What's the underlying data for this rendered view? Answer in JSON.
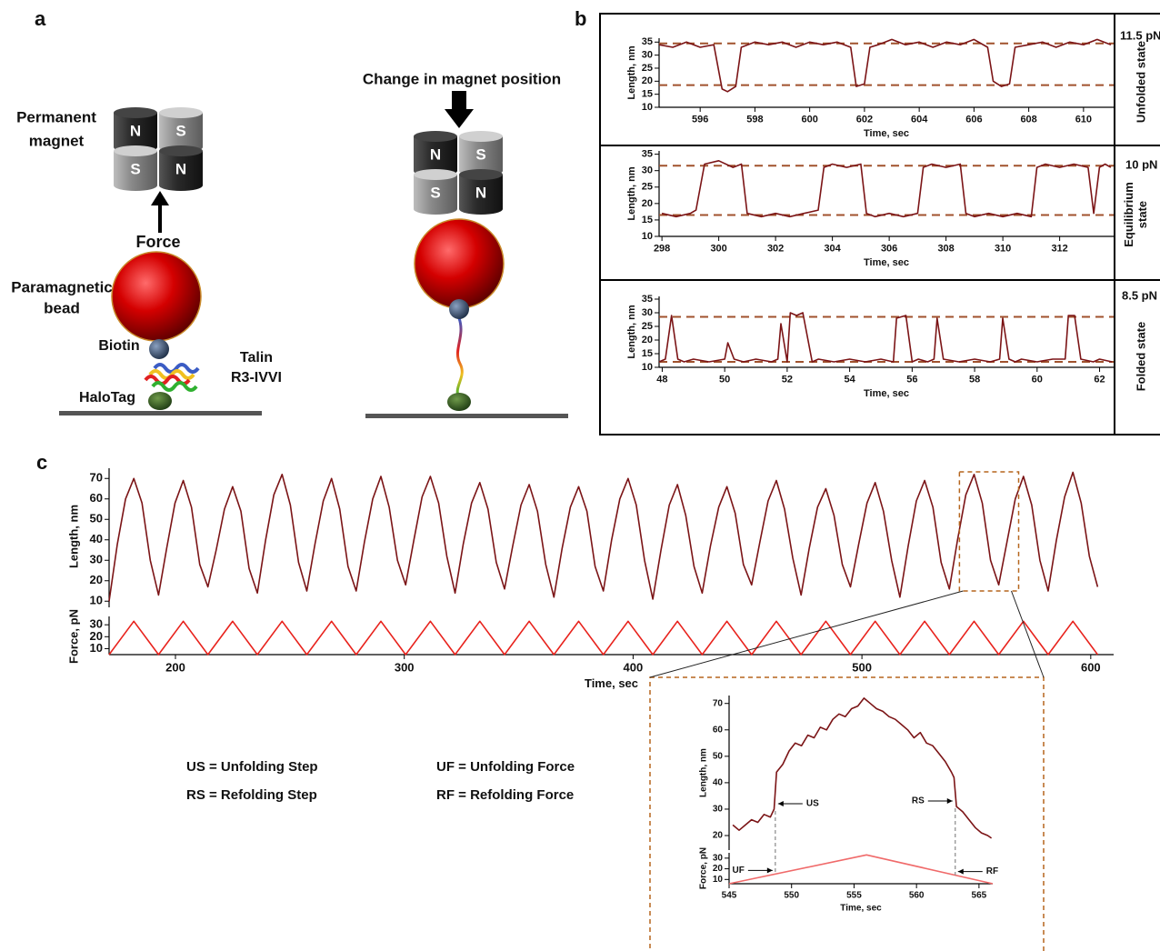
{
  "panel_labels": [
    "a",
    "b",
    "c"
  ],
  "diagram": {
    "poles": [
      "N",
      "S",
      "S",
      "N",
      "N",
      "S",
      "S",
      "N"
    ],
    "permanent_magnet": [
      "Permanent",
      "magnet"
    ],
    "force": "Force",
    "paramagnetic_bead": [
      "Paramagnetic",
      "bead"
    ],
    "biotin": "Biotin",
    "talin": [
      "Talin",
      "R3-IVVI"
    ],
    "halotag": "HaloTag",
    "change_magnet": "Change in magnet position"
  },
  "legend_notes": [
    "US = Unfolding Step",
    "RS = Refolding Step",
    "UF = Unfolding Force",
    "RF = Refolding Force"
  ],
  "chart_data": [
    {
      "type": "line",
      "xlabel": "Time, sec",
      "ylabel": "Length, nm",
      "x": [
        594.5,
        595,
        595.5,
        596,
        596.5,
        596.8,
        597,
        597.3,
        597.5,
        598,
        598.5,
        599,
        599.5,
        600,
        600.5,
        601,
        601.5,
        601.7,
        602,
        602.2,
        602.5,
        603,
        603.5,
        604,
        604.5,
        605,
        605.5,
        606,
        606.5,
        606.7,
        607,
        607.3,
        607.5,
        608,
        608.5,
        609,
        609.5,
        610,
        610.5,
        611
      ],
      "series": [
        {
          "color": "#7b1416",
          "values": [
            34,
            33,
            35,
            33,
            34,
            17,
            16,
            18,
            33,
            35,
            34,
            35,
            33,
            35,
            34,
            35,
            33,
            18,
            19,
            33,
            34,
            36,
            34,
            35,
            33,
            35,
            34,
            36,
            33,
            20,
            18,
            19,
            33,
            34,
            35,
            33,
            35,
            34,
            36,
            34
          ]
        }
      ],
      "xlim": [
        594.5,
        611.1
      ],
      "ylim": [
        10,
        36.5
      ],
      "xticks": [
        596,
        598,
        600,
        602,
        604,
        606,
        608,
        610
      ],
      "yticks": [
        10,
        15,
        20,
        25,
        30,
        35
      ],
      "ref_lines": [
        34.5,
        18.5
      ],
      "ref_color": "#a0522d",
      "side_label": "11.5 pN",
      "state_label": [
        "Unfolded state"
      ]
    },
    {
      "type": "line",
      "xlabel": "Time, sec",
      "ylabel": "Length, nm",
      "x": [
        298,
        298.5,
        299,
        299.2,
        299.5,
        300,
        300.5,
        300.8,
        301,
        301.5,
        302,
        302.5,
        303,
        303.5,
        303.7,
        304,
        304.5,
        305,
        305.2,
        305.5,
        306,
        306.5,
        307,
        307.2,
        307.5,
        308,
        308.5,
        308.7,
        309,
        309.5,
        310,
        310.5,
        311,
        311.2,
        311.5,
        312,
        312.5,
        313,
        313.2,
        313.4,
        313.6,
        313.8
      ],
      "series": [
        {
          "color": "#7b1416",
          "values": [
            17,
            16,
            17,
            18,
            32,
            33,
            31,
            32,
            17,
            16,
            17,
            16,
            17,
            18,
            31,
            32,
            31,
            32,
            17,
            16,
            17,
            16,
            17,
            31,
            32,
            31,
            32,
            17,
            16,
            17,
            16,
            17,
            16,
            31,
            32,
            31,
            32,
            31,
            17,
            31,
            32,
            31
          ]
        }
      ],
      "xlim": [
        297.9,
        313.9
      ],
      "ylim": [
        10,
        36
      ],
      "xticks": [
        298,
        300,
        302,
        304,
        306,
        308,
        310,
        312
      ],
      "yticks": [
        10,
        15,
        20,
        25,
        30,
        35
      ],
      "ref_lines": [
        31.5,
        16.5
      ],
      "ref_color": "#a0522d",
      "side_label": "10 pN",
      "state_label": [
        "Equilibrium",
        "state"
      ]
    },
    {
      "type": "line",
      "xlabel": "Time, sec",
      "ylabel": "Length, nm",
      "x": [
        47.9,
        48.1,
        48.3,
        48.5,
        48.7,
        49,
        49.5,
        50,
        50.1,
        50.3,
        50.6,
        51,
        51.5,
        51.7,
        51.8,
        52,
        52.1,
        52.3,
        52.5,
        52.8,
        53,
        53.5,
        54,
        54.5,
        55,
        55.4,
        55.5,
        55.8,
        56,
        56.2,
        56.5,
        56.7,
        56.8,
        57,
        57.5,
        58,
        58.5,
        58.8,
        58.9,
        59.1,
        59.3,
        59.5,
        60,
        60.5,
        60.9,
        61,
        61.2,
        61.4,
        61.8,
        62,
        62.4
      ],
      "series": [
        {
          "color": "#7b1416",
          "values": [
            12,
            13,
            29,
            13,
            12,
            13,
            12,
            13,
            19,
            13,
            12,
            13,
            12,
            13,
            26,
            12,
            30,
            29,
            30,
            12,
            13,
            12,
            13,
            12,
            13,
            12,
            28,
            29,
            12,
            13,
            12,
            13,
            28,
            13,
            12,
            13,
            12,
            13,
            28,
            13,
            12,
            13,
            12,
            13,
            13,
            29,
            29,
            13,
            12,
            13,
            12
          ]
        }
      ],
      "xlim": [
        47.9,
        62.45
      ],
      "ylim": [
        10,
        36
      ],
      "xticks": [
        48,
        50,
        52,
        54,
        56,
        58,
        60,
        62
      ],
      "yticks": [
        10,
        15,
        20,
        25,
        30,
        35
      ],
      "ref_lines": [
        28.5,
        12
      ],
      "ref_color": "#a0522d",
      "side_label": "8.5 pN",
      "state_label": [
        "Folded state"
      ]
    },
    {
      "type": "line",
      "ylabel": "Length, nm",
      "x": [
        171,
        174.6,
        178.2,
        181.8,
        185.4,
        189,
        192.6,
        196.2,
        199.8,
        203.4,
        207,
        210.6,
        214.2,
        217.8,
        221.4,
        225,
        228.6,
        232.2,
        235.8,
        239.4,
        243,
        246.6,
        250.2,
        253.8,
        257.4,
        261,
        264.6,
        268.2,
        271.8,
        275.4,
        279,
        282.6,
        286.2,
        289.8,
        293.4,
        297,
        300.6,
        304.2,
        307.8,
        311.4,
        315,
        318.6,
        322.2,
        325.8,
        329.4,
        333,
        336.6,
        340.2,
        343.8,
        347.4,
        351,
        354.6,
        358.2,
        361.8,
        365.4,
        369,
        372.6,
        376.2,
        379.8,
        383.4,
        387,
        390.6,
        394.2,
        397.8,
        401.4,
        405,
        408.6,
        412.2,
        415.8,
        419.4,
        423,
        426.6,
        430.2,
        433.8,
        437.4,
        441,
        444.6,
        448.2,
        451.8,
        455.4,
        459,
        462.6,
        466.2,
        469.8,
        473.4,
        477,
        480.6,
        484.2,
        487.8,
        491.4,
        495,
        498.6,
        502.2,
        505.8,
        509.4,
        513,
        516.6,
        520.2,
        523.8,
        527.4,
        531,
        534.6,
        538.2,
        541.8,
        545.4,
        549,
        552.6,
        556.2,
        559.8,
        563.4,
        567,
        570.6,
        574.2,
        577.8,
        581.4,
        585,
        588.6,
        592.2,
        595.8,
        599.4,
        603
      ],
      "series": [
        {
          "color": "#7b1416",
          "values": [
            10,
            38,
            60,
            70,
            58,
            30,
            13,
            36,
            58,
            69,
            56,
            28,
            17,
            35,
            55,
            66,
            54,
            26,
            14,
            40,
            62,
            72,
            57,
            29,
            15,
            38,
            59,
            70,
            55,
            27,
            15,
            39,
            60,
            71,
            56,
            30,
            18,
            40,
            61,
            71,
            58,
            32,
            14,
            38,
            58,
            68,
            55,
            29,
            16,
            37,
            57,
            67,
            54,
            28,
            12,
            36,
            56,
            66,
            54,
            27,
            15,
            40,
            60,
            70,
            57,
            30,
            11,
            35,
            57,
            67,
            52,
            27,
            14,
            37,
            56,
            66,
            53,
            28,
            18,
            39,
            59,
            69,
            55,
            31,
            13,
            36,
            56,
            65,
            52,
            28,
            17,
            38,
            58,
            68,
            54,
            30,
            12,
            37,
            59,
            69,
            56,
            29,
            16,
            40,
            62,
            72,
            58,
            30,
            18,
            39,
            60,
            71,
            57,
            30,
            15,
            40,
            61,
            73,
            58,
            32,
            17
          ]
        }
      ],
      "xlim": [
        171,
        610
      ],
      "ylim": [
        7,
        75
      ],
      "yticks": [
        10,
        20,
        30,
        40,
        50,
        60,
        70
      ]
    },
    {
      "type": "line",
      "xlabel": "Time, sec",
      "ylabel": "Force, pN",
      "x": [
        171,
        181.8,
        192.6,
        203.4,
        214.2,
        225,
        235.8,
        246.6,
        257.4,
        268.2,
        279,
        289.8,
        300.6,
        311.4,
        322.2,
        333,
        343.8,
        354.6,
        365.4,
        376.2,
        387,
        397.8,
        408.6,
        419.4,
        430.2,
        441,
        451.8,
        462.6,
        473.4,
        484.2,
        495,
        505.8,
        516.6,
        527.4,
        538.2,
        549,
        559.8,
        570.6,
        581.4,
        592.2,
        603
      ],
      "series": [
        {
          "color": "#e8221c",
          "values": [
            5,
            33,
            5,
            33,
            5,
            33,
            5,
            33,
            5,
            33,
            5,
            33,
            5,
            33,
            5,
            33,
            5,
            33,
            5,
            33,
            5,
            33,
            5,
            33,
            5,
            33,
            5,
            33,
            5,
            33,
            5,
            33,
            5,
            33,
            5,
            33,
            5,
            33,
            5,
            33,
            5
          ]
        }
      ],
      "xlim": [
        171,
        610
      ],
      "ylim": [
        5,
        37
      ],
      "xticks": [
        200,
        300,
        400,
        500,
        600
      ],
      "yticks": [
        10,
        20,
        30
      ]
    },
    {
      "type": "line",
      "ylabel": "Length, nm",
      "x": [
        545.3,
        545.8,
        546.3,
        546.8,
        547.3,
        547.8,
        548.3,
        548.6,
        548.8,
        549.3,
        549.8,
        550.3,
        550.8,
        551.3,
        551.8,
        552.3,
        552.8,
        553.3,
        553.8,
        554.3,
        554.8,
        555.3,
        555.8,
        556.3,
        556.8,
        557.3,
        557.8,
        558.3,
        558.8,
        559.3,
        559.8,
        560.3,
        560.8,
        561.3,
        561.8,
        562.3,
        562.8,
        563,
        563.2,
        563.7,
        564.2,
        564.7,
        565.2,
        565.7,
        566
      ],
      "series": [
        {
          "color": "#7b1416",
          "values": [
            24,
            22,
            24,
            26,
            25,
            28,
            27,
            30,
            44,
            47,
            52,
            55,
            54,
            58,
            57,
            61,
            60,
            64,
            66,
            65,
            68,
            69,
            72,
            70,
            68,
            67,
            65,
            64,
            62,
            60,
            57,
            59,
            55,
            54,
            51,
            48,
            44,
            42,
            31,
            29,
            26,
            23,
            21,
            20,
            19
          ]
        }
      ],
      "xlim": [
        545,
        566.1
      ],
      "ylim": [
        14.5,
        73
      ],
      "yticks": [
        20,
        30,
        40,
        50,
        60,
        70
      ],
      "annotations": [
        "US",
        "RS"
      ]
    },
    {
      "type": "line",
      "xlabel": "Time, sec",
      "ylabel": "Force, pN",
      "x": [
        545,
        556,
        566.1
      ],
      "series": [
        {
          "color": "#f06a6a",
          "values": [
            6,
            33,
            6
          ]
        }
      ],
      "xlim": [
        545,
        566.1
      ],
      "ylim": [
        6,
        35
      ],
      "xticks": [
        545,
        550,
        555,
        560,
        565
      ],
      "yticks": [
        10,
        20,
        30
      ],
      "annotations": [
        "UF",
        "RF"
      ]
    }
  ]
}
